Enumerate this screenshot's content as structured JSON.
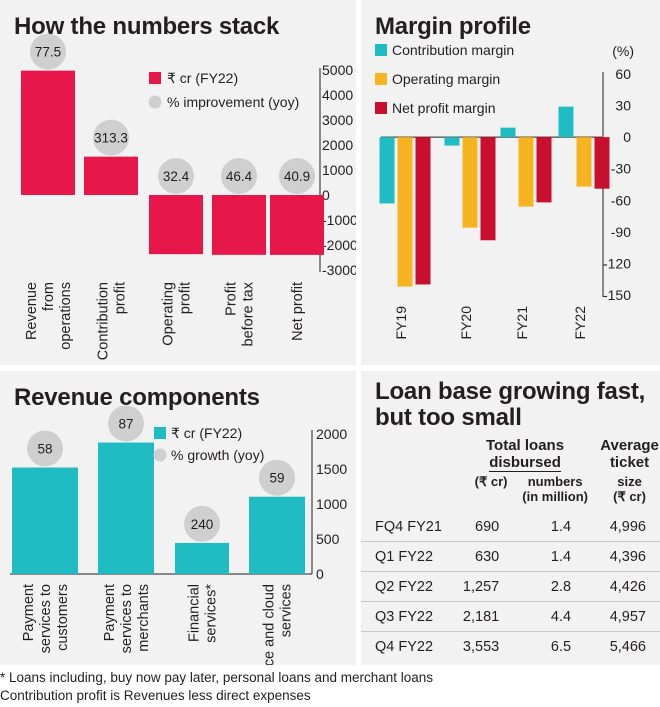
{
  "colors": {
    "red": "#e8174a",
    "bubble": "#cfcfcf",
    "teal": "#1fbcc4",
    "orange": "#f7b421",
    "darkred": "#c8102e"
  },
  "chart_data": [
    {
      "type": "bar",
      "title": "How the numbers stack",
      "categories": [
        "Revenue from operations",
        "Contribution profit",
        "Operating profit",
        "Profit before tax",
        "Net profit"
      ],
      "series": [
        {
          "name": "₹ cr (FY22)",
          "values": [
            4974,
            1534,
            -2366,
            -2394,
            -2396
          ]
        },
        {
          "name": "% improvement (yoy)",
          "values": [
            77.5,
            313.3,
            32.4,
            46.4,
            40.9
          ]
        }
      ],
      "ylim": [
        -3000,
        5000
      ],
      "yticks": [
        5000,
        4000,
        3000,
        2000,
        1000,
        0,
        -1000,
        -2000,
        -3000
      ],
      "legend_position": "top-center"
    },
    {
      "type": "bar",
      "title": "Margin profile",
      "unit": "(%)",
      "categories": [
        "FY19",
        "FY20",
        "FY21",
        "FY22"
      ],
      "series": [
        {
          "name": "Contribution margin",
          "values": [
            -63,
            -8,
            9,
            29
          ]
        },
        {
          "name": "Operating margin",
          "values": [
            -142,
            -86,
            -66,
            -47
          ]
        },
        {
          "name": "Net profit margin",
          "values": [
            -140,
            -98,
            -62,
            -49
          ]
        }
      ],
      "ylim": [
        -150,
        60
      ],
      "yticks": [
        60,
        30,
        0,
        -30,
        -60,
        -90,
        -120,
        -150
      ],
      "legend_position": "top-left"
    },
    {
      "type": "bar",
      "title": "Revenue components",
      "categories": [
        "Payment services to customers",
        "Payment services to merchants",
        "Financial services*",
        "Commerce and cloud services"
      ],
      "series": [
        {
          "name": "₹ cr (FY22)",
          "values": [
            1521,
            1878,
            444,
            1104
          ]
        },
        {
          "name": "% growth (yoy)",
          "values": [
            58,
            87,
            240,
            59
          ]
        }
      ],
      "ylim": [
        0,
        2000
      ],
      "yticks": [
        2000,
        1500,
        1000,
        500,
        0
      ],
      "legend_position": "top-center"
    },
    {
      "type": "table",
      "title": "Loan base growing fast, but too small",
      "columns": [
        "",
        "Total loans disbursed (₹ cr)",
        "Total loans disbursed numbers (in million)",
        "Average ticket size (₹ cr)"
      ],
      "rows": [
        [
          "FQ4 FY21",
          "690",
          "1.4",
          "4,996"
        ],
        [
          "Q1 FY22",
          "630",
          "1.4",
          "4,396"
        ],
        [
          "Q2 FY22",
          "1,257",
          "2.8",
          "4,426"
        ],
        [
          "Q3 FY22",
          "2,181",
          "4.4",
          "4,957"
        ],
        [
          "Q4 FY22",
          "3,553",
          "6.5",
          "5,466"
        ]
      ]
    }
  ],
  "p1": {
    "title": "How the numbers stack",
    "legend": [
      "₹ cr (FY22)",
      "% improvement (yoy)"
    ],
    "xlabels": [
      [
        "Revenue",
        "from",
        "operations"
      ],
      [
        "Contribution",
        "profit"
      ],
      [
        "Operating",
        "profit"
      ],
      [
        "Profit",
        "before tax"
      ],
      [
        "Net profit"
      ]
    ],
    "bubbles": [
      "77.5",
      "313.3",
      "32.4",
      "46.4",
      "40.9"
    ],
    "yticks": [
      "5000",
      "4000",
      "3000",
      "2000",
      "1000",
      "0",
      "-1000",
      "-2000",
      "-3000"
    ]
  },
  "p2": {
    "title": "Margin profile",
    "unit": "(%)",
    "legend": [
      "Contribution margin",
      "Operating margin",
      "Net profit margin"
    ],
    "xlabels": [
      "FY19",
      "FY20",
      "FY21",
      "FY22"
    ],
    "yticks": [
      "60",
      "30",
      "0",
      "-30",
      "-60",
      "-90",
      "-120",
      "-150"
    ]
  },
  "p3": {
    "title": "Revenue components",
    "legend": [
      "₹ cr (FY22)",
      "% growth (yoy)"
    ],
    "xlabels": [
      [
        "Payment",
        "services to",
        "customers"
      ],
      [
        "Payment",
        "services to",
        "merchants"
      ],
      [
        "Financial",
        "services*"
      ],
      [
        "Commerce and cloud",
        "services"
      ]
    ],
    "bubbles": [
      "58",
      "87",
      "240",
      "59"
    ],
    "yticks": [
      "2000",
      "1500",
      "1000",
      "500",
      "0"
    ]
  },
  "p4": {
    "title_line1": "Loan base growing fast,",
    "title_line2": "but too small",
    "header_total_1": "Total loans",
    "header_total_2": "disbursed",
    "header_avg_1": "Average",
    "header_avg_2": "ticket",
    "sub_1": "(₹ cr)",
    "sub_2a": "numbers",
    "sub_2b": "(in million)",
    "sub_3a": "size",
    "sub_3b": "(₹ cr)",
    "rows": [
      {
        "q": "FQ4 FY21",
        "amt": "690",
        "num": "1.4",
        "avg": "4,996"
      },
      {
        "q": "Q1 FY22",
        "amt": "630",
        "num": "1.4",
        "avg": "4,396"
      },
      {
        "q": "Q2 FY22",
        "amt": "1,257",
        "num": "2.8",
        "avg": "4,426"
      },
      {
        "q": "Q3 FY22",
        "amt": "2,181",
        "num": "4.4",
        "avg": "4,957"
      },
      {
        "q": "Q4 FY22",
        "amt": "3,553",
        "num": "6.5",
        "avg": "5,466"
      }
    ]
  },
  "footnotes": {
    "line1": "* Loans including, buy now pay later, personal loans and merchant loans",
    "line2": "Contribution profit is Revenues less direct expenses"
  }
}
